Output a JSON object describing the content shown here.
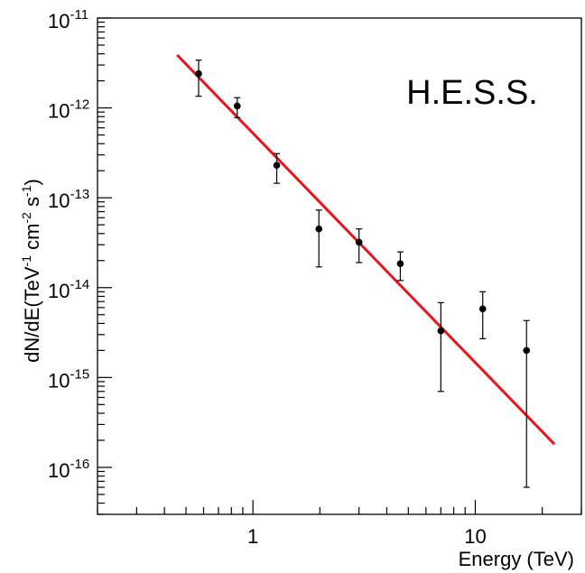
{
  "chart_data": {
    "type": "scatter",
    "annotation": "H.E.S.S.",
    "xlabel": "Energy (TeV)",
    "ylabel_parts": {
      "main": "dN/dE(TeV",
      "exp1": "-1",
      "mid": " cm",
      "exp2": "-2",
      "mid2": " s",
      "exp3": "-1",
      "close": ")"
    },
    "x_scale": "log",
    "y_scale": "log",
    "xlim": [
      0.2,
      30
    ],
    "ylim": [
      3e-17,
      1e-11
    ],
    "x_ticks": [
      {
        "value": 1,
        "base": "1",
        "exp": ""
      },
      {
        "value": 10,
        "base": "10",
        "exp": ""
      }
    ],
    "y_ticks": [
      {
        "value": 1e-11,
        "base": "10",
        "exp": "-11"
      },
      {
        "value": 1e-12,
        "base": "10",
        "exp": "-12"
      },
      {
        "value": 1e-13,
        "base": "10",
        "exp": "-13"
      },
      {
        "value": 1e-14,
        "base": "10",
        "exp": "-14"
      },
      {
        "value": 1e-15,
        "base": "10",
        "exp": "-15"
      },
      {
        "value": 1e-16,
        "base": "10",
        "exp": "-16"
      }
    ],
    "points": [
      {
        "x": 0.57,
        "y": 2.4e-12,
        "ylo": 1.35e-12,
        "yhi": 3.4e-12
      },
      {
        "x": 0.85,
        "y": 1.05e-12,
        "ylo": 7.8e-13,
        "yhi": 1.3e-12
      },
      {
        "x": 1.28,
        "y": 2.3e-13,
        "ylo": 1.45e-13,
        "yhi": 3.1e-13
      },
      {
        "x": 1.98,
        "y": 4.5e-14,
        "ylo": 1.7e-14,
        "yhi": 7.3e-14
      },
      {
        "x": 3.0,
        "y": 3.2e-14,
        "ylo": 1.9e-14,
        "yhi": 4.5e-14
      },
      {
        "x": 4.6,
        "y": 1.85e-14,
        "ylo": 1.2e-14,
        "yhi": 2.5e-14
      },
      {
        "x": 7.0,
        "y": 3.3e-15,
        "ylo": 7e-16,
        "yhi": 6.8e-15
      },
      {
        "x": 10.8,
        "y": 5.8e-15,
        "ylo": 2.7e-15,
        "yhi": 9e-15
      },
      {
        "x": 17.0,
        "y": 2e-15,
        "ylo": 6e-17,
        "yhi": 4.3e-15
      }
    ],
    "fit_line": {
      "x": [
        0.46,
        22.5
      ],
      "y": [
        3.8e-12,
        1.85e-16
      ]
    },
    "colors": {
      "fit": "#e8151b",
      "points": "#000000",
      "axes": "#000000"
    }
  }
}
